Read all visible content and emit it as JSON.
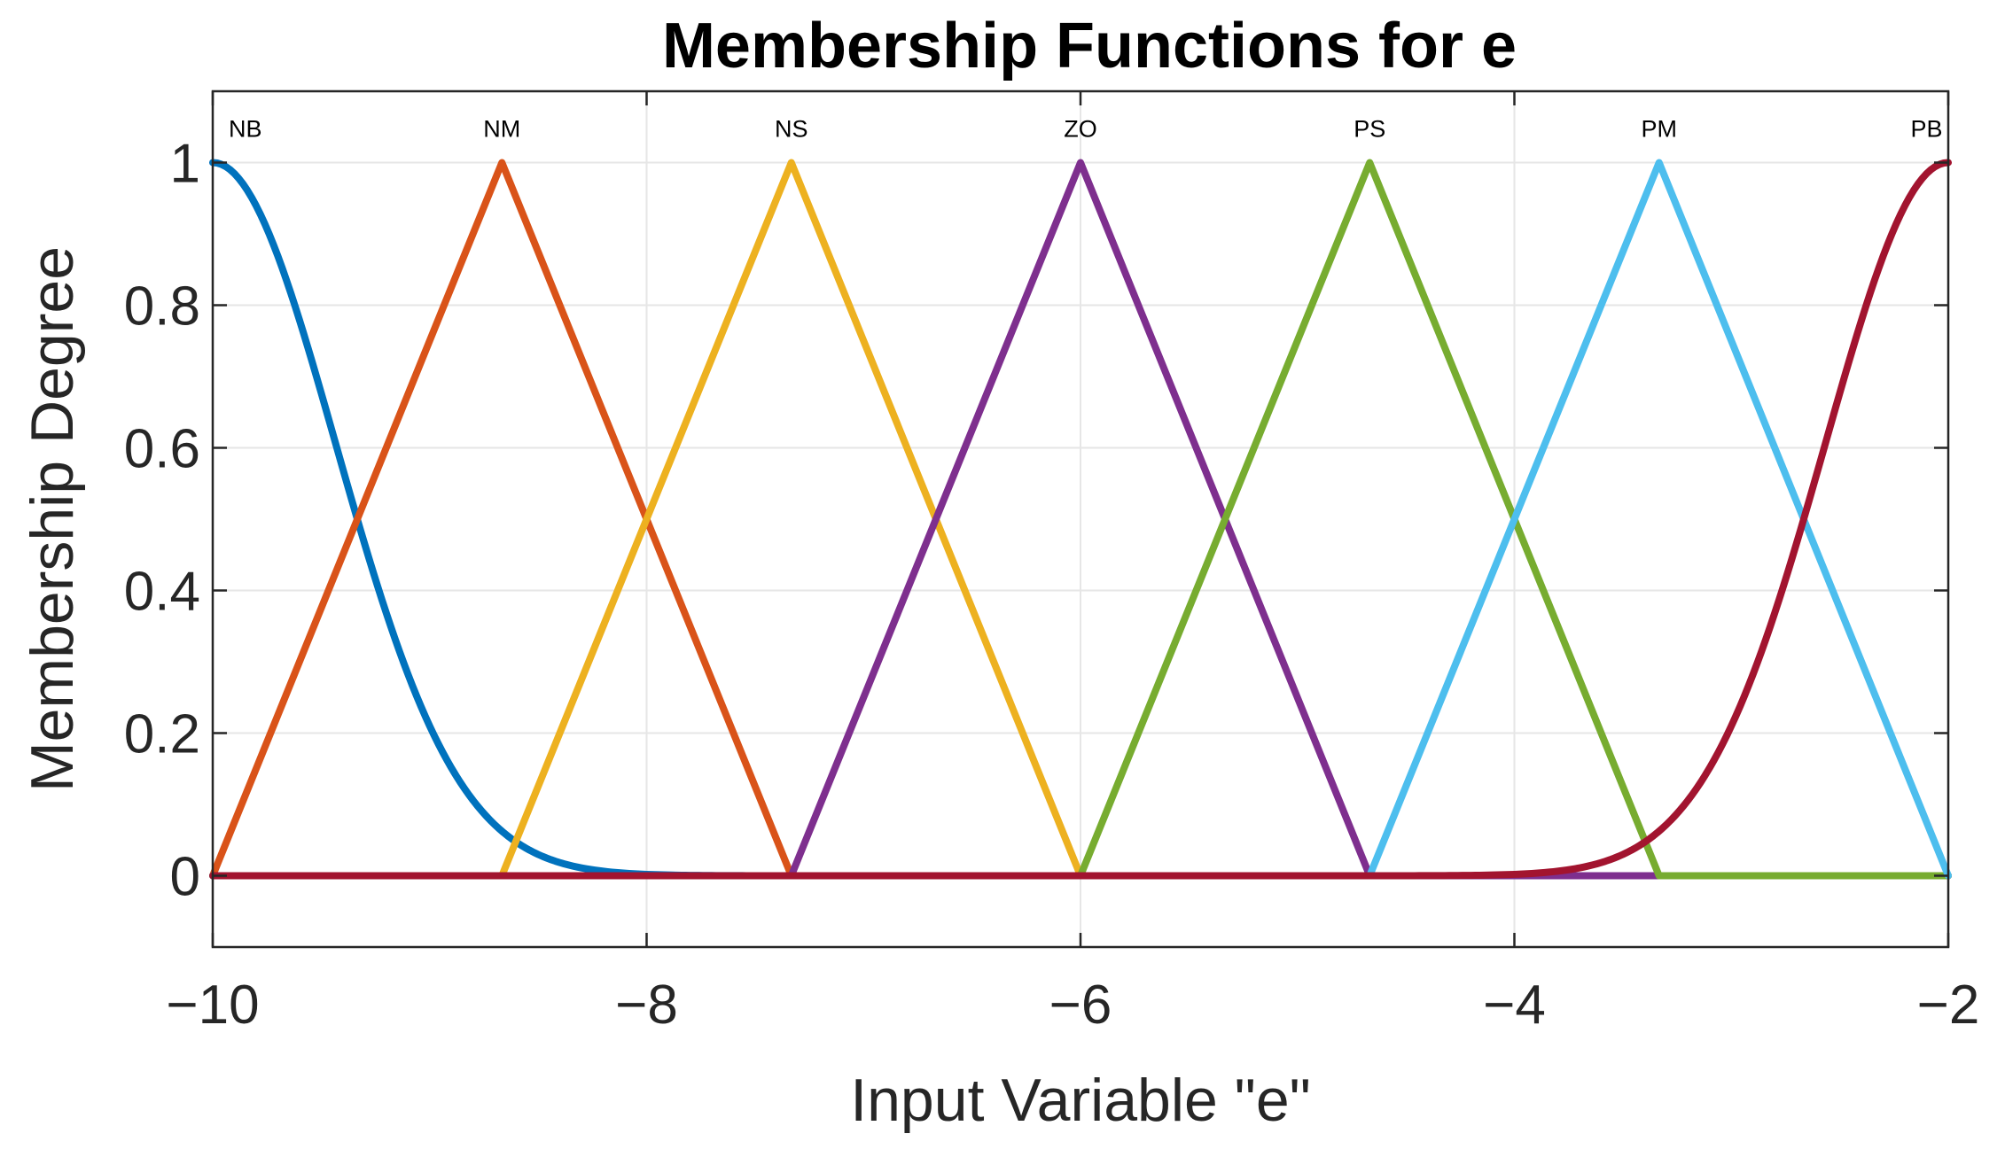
{
  "chart_data": {
    "type": "line",
    "title": "Membership Functions for e",
    "xlabel": "Input Variable \"e\"",
    "ylabel": "Membership Degree",
    "xlim": [
      -10,
      -2
    ],
    "ylim": [
      -0.1,
      1.1
    ],
    "xticks": [
      -10,
      -8,
      -6,
      -4,
      -2
    ],
    "xtick_labels": [
      "−10",
      "−8",
      "−6",
      "−4",
      "−2"
    ],
    "yticks": [
      0,
      0.2,
      0.4,
      0.6,
      0.8,
      1
    ],
    "ytick_labels": [
      "0",
      "0.2",
      "0.4",
      "0.6",
      "0.8",
      "1"
    ],
    "grid": true,
    "series": [
      {
        "name": "NB",
        "color": "#0072BD",
        "shape": "gaussian",
        "center": -10,
        "sigma": 0.566,
        "label_x": -9.85,
        "label_y": 1.047
      },
      {
        "name": "NM",
        "color": "#D95319",
        "shape": "triangle",
        "x": [
          -10,
          -8.667,
          -7.333
        ],
        "y": [
          0,
          1,
          0
        ],
        "label_x": -8.667,
        "label_y": 1.047
      },
      {
        "name": "NS",
        "color": "#EDB120",
        "shape": "triangle",
        "x": [
          -8.667,
          -7.333,
          -6
        ],
        "y": [
          0,
          1,
          0
        ],
        "label_x": -7.333,
        "label_y": 1.047
      },
      {
        "name": "ZO",
        "color": "#7E2F8E",
        "shape": "triangle",
        "x": [
          -7.333,
          -6,
          -4.667
        ],
        "y": [
          0,
          1,
          0
        ],
        "label_x": -6,
        "label_y": 1.047
      },
      {
        "name": "PS",
        "color": "#77AC30",
        "shape": "triangle",
        "x": [
          -6,
          -4.667,
          -3.333
        ],
        "y": [
          0,
          1,
          0
        ],
        "label_x": -4.667,
        "label_y": 1.047
      },
      {
        "name": "PM",
        "color": "#4DBEEE",
        "shape": "triangle",
        "x": [
          -4.667,
          -3.333,
          -2
        ],
        "y": [
          0,
          1,
          0
        ],
        "label_x": -3.333,
        "label_y": 1.047
      },
      {
        "name": "PB",
        "color": "#A2142F",
        "shape": "gaussian",
        "center": -2,
        "sigma": 0.566,
        "label_x": -2.1,
        "label_y": 1.047
      }
    ]
  }
}
